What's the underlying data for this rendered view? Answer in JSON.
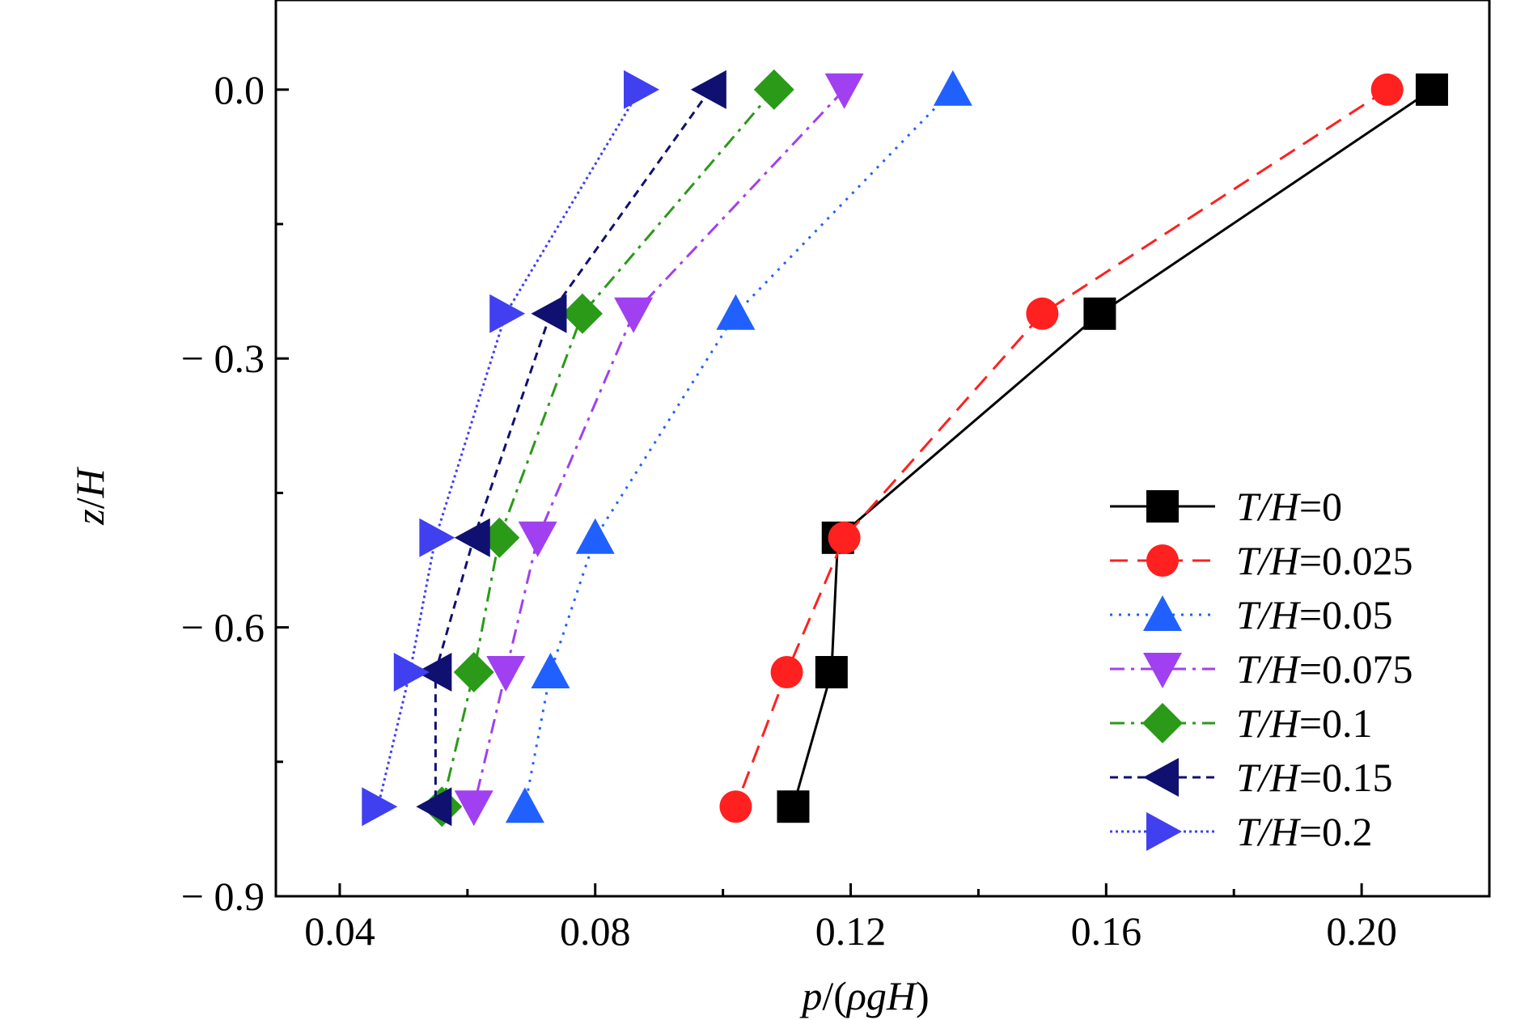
{
  "chart_data": {
    "type": "line",
    "title": "",
    "xlabel_parts": [
      "p",
      "/(",
      "ρgH",
      ")"
    ],
    "ylabel_parts": [
      "z",
      "/",
      "H"
    ],
    "xlim": [
      0.03,
      0.22
    ],
    "ylim": [
      -0.9,
      0.1
    ],
    "x_ticks": [
      0.04,
      0.08,
      0.12,
      0.16,
      0.2
    ],
    "x_tick_labels": [
      "0.04",
      "0.08",
      "0.12",
      "0.16",
      "0.20"
    ],
    "y_ticks": [
      0.0,
      -0.3,
      -0.6,
      -0.9
    ],
    "y_tick_labels": [
      "0.0",
      "− 0.3",
      "− 0.6",
      "− 0.9"
    ],
    "grid": false,
    "legend_position": "bottom-right",
    "series": [
      {
        "name": "T/H=0",
        "label_parts": [
          "T/H",
          "=0"
        ],
        "color": "#000000",
        "dash": "solid",
        "marker": "square",
        "x": [
          0.211,
          0.159,
          0.118,
          0.117,
          0.111
        ],
        "y": [
          0.0,
          -0.25,
          -0.5,
          -0.65,
          -0.8
        ]
      },
      {
        "name": "T/H=0.025",
        "label_parts": [
          "T/H",
          "=0.025"
        ],
        "color": "#ff2020",
        "dash": "dashed",
        "marker": "circle",
        "x": [
          0.204,
          0.15,
          0.119,
          0.11,
          0.102
        ],
        "y": [
          0.0,
          -0.25,
          -0.5,
          -0.65,
          -0.8
        ]
      },
      {
        "name": "T/H=0.05",
        "label_parts": [
          "T/H",
          "=0.05"
        ],
        "color": "#2060ff",
        "dash": "dotted",
        "marker": "triangle-up",
        "x": [
          0.136,
          0.102,
          0.08,
          0.073,
          0.069
        ],
        "y": [
          0.0,
          -0.25,
          -0.5,
          -0.65,
          -0.8
        ]
      },
      {
        "name": "T/H=0.075",
        "label_parts": [
          "T/H",
          "=0.075"
        ],
        "color": "#a040f0",
        "dash": "dashdot",
        "marker": "triangle-down",
        "x": [
          0.119,
          0.086,
          0.071,
          0.066,
          0.061
        ],
        "y": [
          0.0,
          -0.25,
          -0.5,
          -0.65,
          -0.8
        ]
      },
      {
        "name": "T/H=0.1",
        "label_parts": [
          "T/H",
          "=0.1"
        ],
        "color": "#2a9a18",
        "dash": "dashdot",
        "marker": "diamond",
        "x": [
          0.108,
          0.078,
          0.065,
          0.061,
          0.056
        ],
        "y": [
          0.0,
          -0.25,
          -0.5,
          -0.65,
          -0.8
        ]
      },
      {
        "name": "T/H=0.15",
        "label_parts": [
          "T/H",
          "=0.15"
        ],
        "color": "#101070",
        "dash": "shortdash",
        "marker": "triangle-left",
        "x": [
          0.098,
          0.073,
          0.061,
          0.055,
          0.055
        ],
        "y": [
          0.0,
          -0.25,
          -0.5,
          -0.65,
          -0.8
        ]
      },
      {
        "name": "T/H=0.2",
        "label_parts": [
          "T/H",
          "=0.2"
        ],
        "color": "#4040f0",
        "dash": "dense-dotted",
        "marker": "triangle-right",
        "x": [
          0.087,
          0.066,
          0.055,
          0.051,
          0.046
        ],
        "y": [
          0.0,
          -0.25,
          -0.5,
          -0.65,
          -0.8
        ]
      }
    ]
  }
}
